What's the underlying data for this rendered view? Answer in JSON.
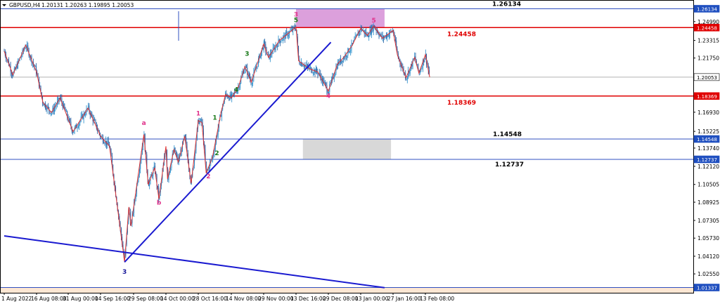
{
  "header": {
    "symbol": "GBPUSD,H4",
    "quote": "1.20131 1.20263 1.19895 1.20053"
  },
  "colors": {
    "background": "#ffffff",
    "bull_candle": "#1e88c8",
    "bear_candle": "#1e5aa0",
    "zigzag": "#e03030",
    "resistance_line": "#e00000",
    "level_line": "#3050c0",
    "trendline": "#1a1ad0",
    "upper_zone": "#dca0dc",
    "lower_zone": "#d8d8d8",
    "wave_magenta": "#e0358c",
    "wave_green": "#1a7a1a",
    "wave_blue": "#1a1a9a",
    "bottom_band": "#fde7d3",
    "price_tag_blue": "#1f4fc0",
    "price_tag_red": "#e00000"
  },
  "chart_data": {
    "type": "candlestick",
    "symbol": "GBPUSD",
    "timeframe": "H4",
    "ohlc_last": {
      "open": 1.20131,
      "high": 1.20263,
      "low": 1.19895,
      "close": 1.20053
    },
    "ylim": [
      1.0087,
      1.2685
    ],
    "x_tick_labels": [
      "1 Aug 2022",
      "16 Aug 08:00",
      "31 Aug 00:00",
      "14 Sep 16:00",
      "29 Sep 08:00",
      "14 Oct 00:00",
      "28 Oct 16:00",
      "14 Nov 08:00",
      "29 Nov 00:00",
      "13 Dec 16:00",
      "29 Dec 08:00",
      "13 Jan 00:00",
      "27 Jan 16:00",
      "13 Feb 08:00"
    ],
    "y_tick_labels": [
      {
        "value": 1.26134,
        "label": "1.26134",
        "type": "level_blue"
      },
      {
        "value": 1.2499,
        "label": "1.24990",
        "type": "plain"
      },
      {
        "value": 1.24458,
        "label": "1.24458",
        "type": "level_red"
      },
      {
        "value": 1.23315,
        "label": "1.23315",
        "type": "plain"
      },
      {
        "value": 1.2175,
        "label": "1.21750",
        "type": "plain"
      },
      {
        "value": 1.20053,
        "label": "1.20053",
        "type": "current"
      },
      {
        "value": 1.18369,
        "label": "1.18369",
        "type": "level_red"
      },
      {
        "value": 1.1693,
        "label": "1.16930",
        "type": "plain"
      },
      {
        "value": 1.15225,
        "label": "1.15225",
        "type": "plain"
      },
      {
        "value": 1.14548,
        "label": "1.14548",
        "type": "level_blue"
      },
      {
        "value": 1.1374,
        "label": "1.13740",
        "type": "plain"
      },
      {
        "value": 1.12737,
        "label": "1.12737",
        "type": "level_blue"
      },
      {
        "value": 1.1212,
        "label": "1.12120",
        "type": "plain"
      },
      {
        "value": 1.10505,
        "label": "1.10505",
        "type": "plain"
      },
      {
        "value": 1.08925,
        "label": "1.08925",
        "type": "plain"
      },
      {
        "value": 1.07305,
        "label": "1.07305",
        "type": "plain"
      },
      {
        "value": 1.0573,
        "label": "1.05730",
        "type": "plain"
      },
      {
        "value": 1.0412,
        "label": "1.04120",
        "type": "plain"
      },
      {
        "value": 1.0255,
        "label": "1.02550",
        "type": "plain"
      },
      {
        "value": 1.01337,
        "label": "1.01337",
        "type": "level_blue"
      }
    ],
    "horizontal_levels": [
      {
        "value": 1.26134,
        "label": "1.26134",
        "color": "blue",
        "label_color": "#000000"
      },
      {
        "value": 1.24458,
        "label": "1.24458",
        "color": "red",
        "label_color": "#e00000"
      },
      {
        "value": 1.18369,
        "label": "1.18369",
        "color": "red",
        "label_color": "#e00000"
      },
      {
        "value": 1.14548,
        "label": "1.14548",
        "color": "blue",
        "label_color": "#000000"
      },
      {
        "value": 1.12737,
        "label": "1.12737",
        "color": "blue",
        "label_color": "#000000"
      },
      {
        "value": 1.01337,
        "label": "",
        "color": "blue",
        "label_color": "#000000"
      }
    ],
    "zones": [
      {
        "name": "upper-zone",
        "x_from": "13 Dec 16:00",
        "x_to": "25 Jan 12:00",
        "y_from": 1.2445,
        "y_to": 1.2613
      },
      {
        "name": "lower-zone",
        "x_from": "18 Dec 12:00",
        "x_to": "28 Jan 00:00",
        "y_from": 1.1274,
        "y_to": 1.1454
      }
    ],
    "pivots": [
      {
        "t": "1 Aug 2022",
        "p": 1.2235
      },
      {
        "t": "5 Aug 2022",
        "p": 1.2025
      },
      {
        "t": "11 Aug 2022",
        "p": 1.229
      },
      {
        "t": "16 Aug 08:00",
        "p": 1.205
      },
      {
        "t": "19 Aug",
        "p": 1.178
      },
      {
        "t": "23 Aug",
        "p": 1.169
      },
      {
        "t": "27 Aug",
        "p": 1.182
      },
      {
        "t": "2 Sep",
        "p": 1.152
      },
      {
        "t": "9 Sep",
        "p": 1.173
      },
      {
        "t": "14 Sep 16:00",
        "p": 1.148
      },
      {
        "t": "19 Sep",
        "p": 1.139
      },
      {
        "t": "26 Sep",
        "p": 1.036
      },
      {
        "t": "28 Sep",
        "p": 1.085
      },
      {
        "t": "29 Sep",
        "p": 1.068
      },
      {
        "t": "5 Oct",
        "p": 1.1495
      },
      {
        "t": "7 Oct",
        "p": 1.105
      },
      {
        "t": "10 Oct",
        "p": 1.12
      },
      {
        "t": "12 Oct",
        "p": 1.092
      },
      {
        "t": "14 Oct 00:00",
        "p": 1.139
      },
      {
        "t": "16 Oct",
        "p": 1.11
      },
      {
        "t": "19 Oct",
        "p": 1.136
      },
      {
        "t": "21 Oct",
        "p": 1.125
      },
      {
        "t": "24 Oct",
        "p": 1.148
      },
      {
        "t": "27 Oct",
        "p": 1.106
      },
      {
        "t": "28 Oct 16:00",
        "p": 1.162
      },
      {
        "t": "1 Nov",
        "p": 1.16
      },
      {
        "t": "3 Nov",
        "p": 1.115
      },
      {
        "t": "6 Nov",
        "p": 1.13
      },
      {
        "t": "10 Nov",
        "p": 1.17
      },
      {
        "t": "12 Nov",
        "p": 1.185
      },
      {
        "t": "14 Nov 08:00",
        "p": 1.182
      },
      {
        "t": "18 Nov",
        "p": 1.192
      },
      {
        "t": "21 Nov",
        "p": 1.21
      },
      {
        "t": "24 Nov",
        "p": 1.196
      },
      {
        "t": "29 Nov 00:00",
        "p": 1.23
      },
      {
        "t": "2 Dec",
        "p": 1.218
      },
      {
        "t": "7 Dec",
        "p": 1.233
      },
      {
        "t": "13 Dec 16:00",
        "p": 1.245
      },
      {
        "t": "16 Dec",
        "p": 1.215
      },
      {
        "t": "21 Dec",
        "p": 1.208
      },
      {
        "t": "25 Dec",
        "p": 1.205
      },
      {
        "t": "29 Dec 08:00",
        "p": 1.188
      },
      {
        "t": "3 Jan",
        "p": 1.212
      },
      {
        "t": "6 Jan",
        "p": 1.218
      },
      {
        "t": "10 Jan",
        "p": 1.229
      },
      {
        "t": "13 Jan 00:00",
        "p": 1.244
      },
      {
        "t": "17 Jan",
        "p": 1.2375
      },
      {
        "t": "20 Jan",
        "p": 1.246
      },
      {
        "t": "24 Jan",
        "p": 1.235
      },
      {
        "t": "27 Jan 16:00",
        "p": 1.242
      },
      {
        "t": "31 Jan",
        "p": 1.22
      },
      {
        "t": "4 Feb",
        "p": 1.2
      },
      {
        "t": "8 Feb",
        "p": 1.218
      },
      {
        "t": "10 Feb",
        "p": 1.204
      },
      {
        "t": "13 Feb 08:00",
        "p": 1.2205
      },
      {
        "t": "15 Feb",
        "p": 1.2005
      }
    ],
    "trendlines": [
      {
        "name": "rising-trendline",
        "from": {
          "t": "26 Sep",
          "p": 1.036
        },
        "to": {
          "t": "31 Dec",
          "p": 1.2315
        }
      },
      {
        "name": "falling-trendline",
        "from": {
          "t": "1 Aug 2022",
          "p": 1.0593
        },
        "to": {
          "t": "25 Jan",
          "p": 1.0132
        }
      }
    ],
    "wave_labels": [
      {
        "text": "3",
        "color": "magenta",
        "t": "13 Dec 16:00",
        "p": 1.2545
      },
      {
        "text": "5",
        "color": "green",
        "t": "13 Dec 16:00",
        "p": 1.2495
      },
      {
        "text": "5",
        "color": "magenta",
        "t": "20 Jan",
        "p": 1.249
      },
      {
        "text": "3",
        "color": "green",
        "t": "22 Nov",
        "p": 1.2195
      },
      {
        "text": "4",
        "color": "green",
        "t": "17 Nov",
        "p": 1.1875
      },
      {
        "text": "4",
        "color": "magenta",
        "t": "29 Dec 08:00",
        "p": 1.182
      },
      {
        "text": "1",
        "color": "magenta",
        "t": "28 Oct 16:00",
        "p": 1.1665
      },
      {
        "text": "1",
        "color": "green",
        "t": "7 Nov",
        "p": 1.1625
      },
      {
        "text": "2",
        "color": "green",
        "t": "8 Nov",
        "p": 1.131
      },
      {
        "text": "2",
        "color": "magenta",
        "t": "4 Nov",
        "p": 1.1105
      },
      {
        "text": "a",
        "color": "magenta",
        "t": "5 Oct",
        "p": 1.158
      },
      {
        "text": "b",
        "color": "magenta",
        "t": "12 Oct",
        "p": 1.087
      },
      {
        "text": "3",
        "color": "blue",
        "t": "26 Sep",
        "p": 1.0255
      }
    ],
    "current_price": 1.20053,
    "grid": false
  }
}
